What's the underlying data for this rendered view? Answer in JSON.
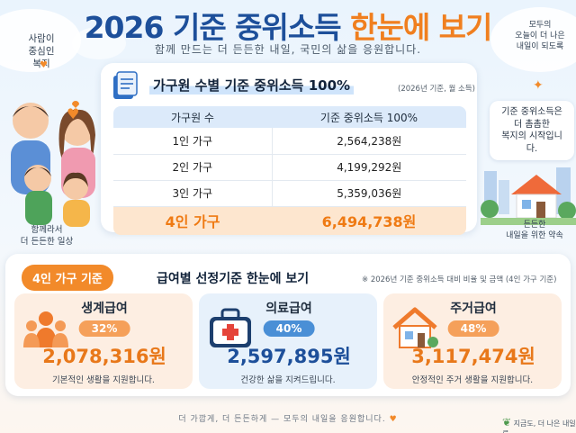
{
  "header": {
    "title_year": "2026",
    "title_mid": "기준 중위소득",
    "title_hl": "한눈에 보기",
    "subtitle": "함께 만드는 더 든든한 내일, 국민의 삶을 응원합니다."
  },
  "notes": {
    "top_left": "사람이\n중심인\n복지",
    "top_right": "모두의\n오늘이 더 나은\n내일이 되도록",
    "family_caption": "함께라서\n더 든든한 일상",
    "right_bubble": "기준 중위소득은\n더 촘촘한\n복지의 시작입니다.",
    "right_caption": "든든한\n내일을 위한 약속"
  },
  "income_section": {
    "title": "가구원 수별 기준 중위소득 100%",
    "note": "(2026년 기준, 월 소득)",
    "headers": [
      "가구원 수",
      "기준 중위소득 100%"
    ],
    "rows": [
      {
        "size": "1인 가구",
        "amount": "2,564,238원"
      },
      {
        "size": "2인 가구",
        "amount": "4,199,292원"
      },
      {
        "size": "3인 가구",
        "amount": "5,359,036원"
      }
    ],
    "highlight_row": {
      "size": "4인 가구",
      "amount": "6,494,738원"
    }
  },
  "benefit_section": {
    "badge": "4인 가구 기준",
    "title": "급여별 선정기준 한눈에 보기",
    "note": "※ 2026년 기준 중위소득 대비 비율 및 금액 (4인 가구 기준)",
    "benefits": [
      {
        "name": "생계급여",
        "percent": "32%",
        "amount": "2,078,316원",
        "desc": "기본적인 생활을 지원합니다.",
        "icon": "people-icon"
      },
      {
        "name": "의료급여",
        "percent": "40%",
        "amount": "2,597,895원",
        "desc": "건강한 삶을 지켜드립니다.",
        "icon": "medical-kit-icon"
      },
      {
        "name": "주거급여",
        "percent": "48%",
        "amount": "3,117,474원",
        "desc": "안정적인 주거 생활을 지원합니다.",
        "icon": "house-icon"
      }
    ]
  },
  "footer": {
    "text": "더 가깝게, 더 든든하게 — 모두의 내일을 응원합니다.",
    "right": "지금도, 더 나은 내일로"
  },
  "colors": {
    "primary_blue": "#1d4f9a",
    "accent_orange": "#f07f1f",
    "table_header": "#dceafa",
    "highlight_row": "#fde6cf"
  }
}
